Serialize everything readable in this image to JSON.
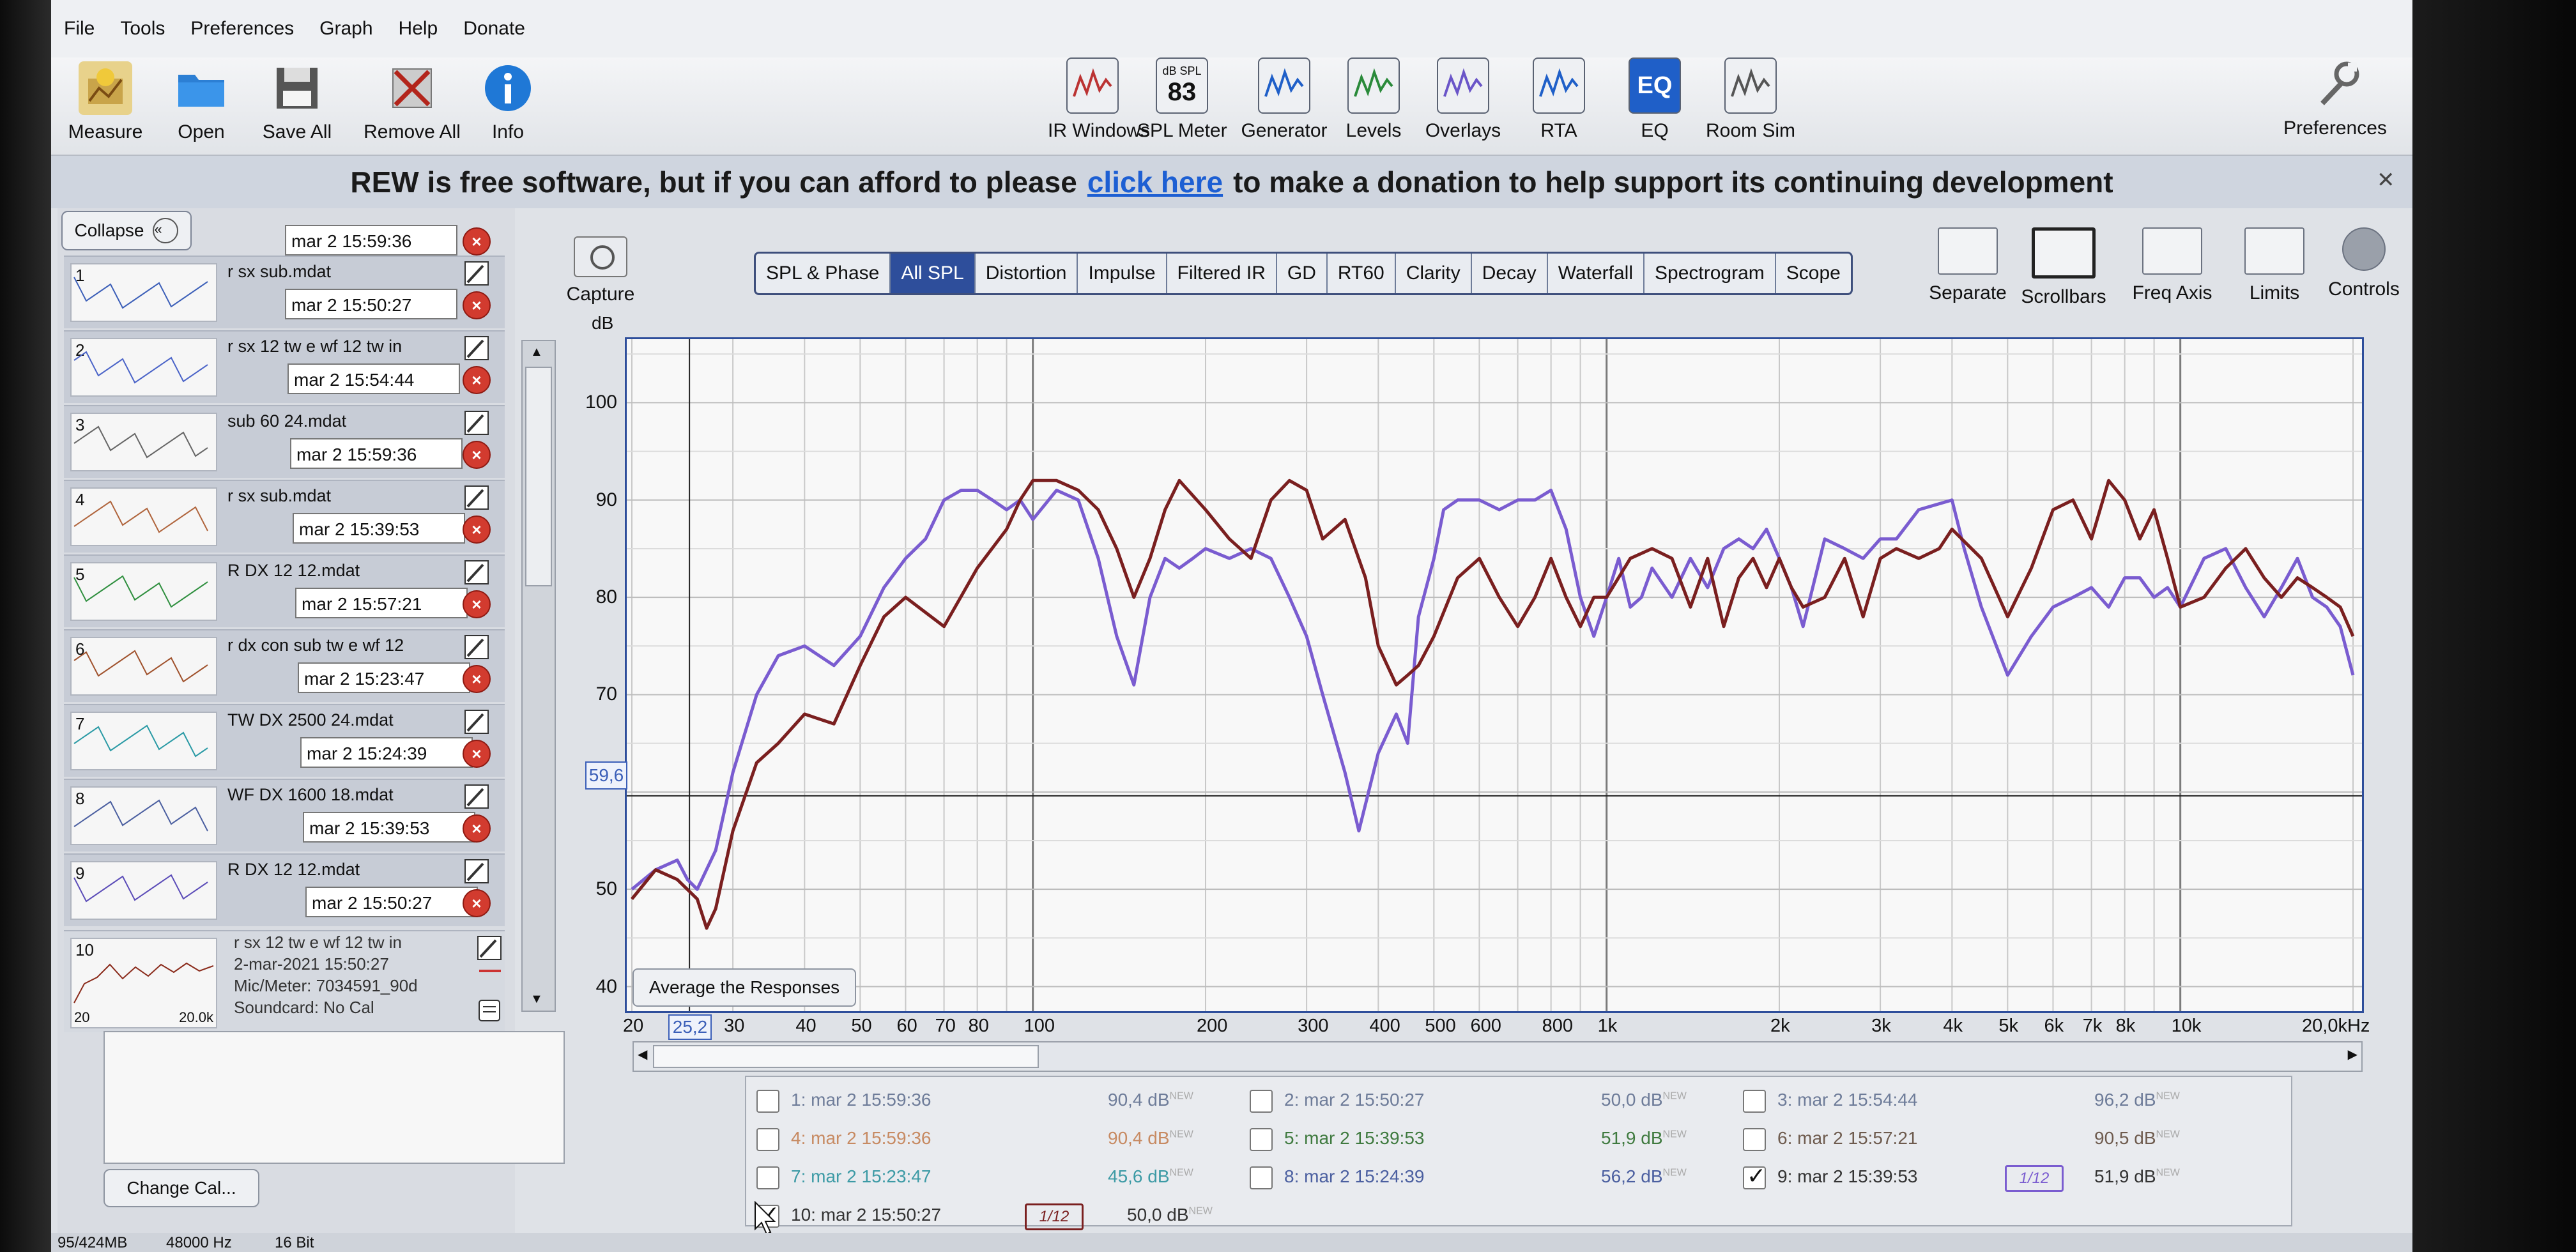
{
  "menu": [
    "File",
    "Tools",
    "Preferences",
    "Graph",
    "Help",
    "Donate"
  ],
  "toolbar_left": [
    "Measure",
    "Open",
    "Save All",
    "Remove All",
    "Info"
  ],
  "toolbar_center": [
    {
      "label": "IR Windows",
      "icon": "ir-windows-icon"
    },
    {
      "label": "SPL Meter",
      "icon": "spl-meter-icon",
      "top": "dB SPL",
      "value": "83"
    },
    {
      "label": "Generator",
      "icon": "generator-icon"
    },
    {
      "label": "Levels",
      "icon": "levels-icon"
    },
    {
      "label": "Overlays",
      "icon": "overlays-icon"
    },
    {
      "label": "RTA",
      "icon": "rta-icon"
    },
    {
      "label": "EQ",
      "icon": "eq-icon"
    },
    {
      "label": "Room Sim",
      "icon": "room-sim-icon"
    }
  ],
  "toolbar_right": "Preferences",
  "banner": {
    "before": "REW is free software, but if you can afford to please",
    "link": "click here",
    "after": "to make a donation to help support its continuing development"
  },
  "left_panel": {
    "collapse_label": "Collapse",
    "top_time": "mar 2 15:59:36",
    "measurements": [
      {
        "num": "1",
        "name": "r sx sub.mdat",
        "time": "mar 2 15:50:27"
      },
      {
        "num": "2",
        "name": "r sx 12 tw e wf 12 tw in",
        "time": "mar 2 15:54:44"
      },
      {
        "num": "3",
        "name": "sub 60 24.mdat",
        "time": "mar 2 15:59:36"
      },
      {
        "num": "4",
        "name": "r sx sub.mdat",
        "time": "mar 2 15:39:53"
      },
      {
        "num": "5",
        "name": "R DX 12 12.mdat",
        "time": "mar 2 15:57:21"
      },
      {
        "num": "6",
        "name": "r dx con sub tw e wf 12",
        "time": "mar 2 15:23:47"
      },
      {
        "num": "7",
        "name": "TW DX 2500 24.mdat",
        "time": "mar 2 15:24:39"
      },
      {
        "num": "8",
        "name": "WF DX 1600 18.mdat",
        "time": "mar 2 15:39:53"
      },
      {
        "num": "9",
        "name": "R DX 12 12.mdat",
        "time": "mar 2 15:50:27"
      }
    ],
    "selected": {
      "num": "10",
      "name": "r sx 12 tw e wf 12 tw in",
      "date": "2-mar-2021 15:50:27",
      "mic": "Mic/Meter: 7034591_90d",
      "soundcard": "Soundcard: No Cal",
      "thumb_min": "20",
      "thumb_max": "20.0k"
    },
    "change_cal": "Change Cal..."
  },
  "capture": {
    "label": "Capture",
    "unit": "dB"
  },
  "tabs": [
    "SPL & Phase",
    "All SPL",
    "Distortion",
    "Impulse",
    "Filtered IR",
    "GD",
    "RT60",
    "Clarity",
    "Decay",
    "Waterfall",
    "Spectrogram",
    "Scope"
  ],
  "active_tab": "All SPL",
  "right_tools": [
    {
      "label": "Separate",
      "icon": "separate-icon"
    },
    {
      "label": "Scrollbars",
      "icon": "scrollbars-icon"
    },
    {
      "label": "Freq Axis",
      "icon": "freq-axis-icon"
    },
    {
      "label": "Limits",
      "icon": "limits-icon"
    },
    {
      "label": "Controls",
      "icon": "controls-icon"
    }
  ],
  "average_button": "Average the Responses",
  "cursor_readout": {
    "y": "59,6",
    "x": "25,2"
  },
  "chart_data": {
    "type": "line",
    "xscale": "log",
    "xlim": [
      20,
      20000
    ],
    "ylim": [
      38,
      106
    ],
    "y_ticks": [
      "100",
      "90",
      "80",
      "70",
      "50",
      "40"
    ],
    "x_ticks": [
      "20",
      "30",
      "40",
      "50",
      "60",
      "70",
      "80",
      "100",
      "200",
      "300",
      "400",
      "500",
      "600",
      "800",
      "1k",
      "2k",
      "3k",
      "4k",
      "5k",
      "6k",
      "7k",
      "8k",
      "10k",
      "20,0kHz"
    ],
    "cursor": {
      "x": 25.2,
      "y": 59.6
    },
    "series": [
      {
        "color": "#7a5cd0",
        "x": [
          20,
          22,
          24,
          25,
          26,
          28,
          30,
          33,
          36,
          40,
          45,
          50,
          55,
          60,
          65,
          70,
          75,
          80,
          85,
          90,
          95,
          100,
          110,
          120,
          130,
          140,
          150,
          160,
          170,
          180,
          190,
          200,
          220,
          240,
          260,
          280,
          300,
          320,
          350,
          370,
          400,
          430,
          450,
          470,
          500,
          520,
          550,
          600,
          650,
          700,
          750,
          800,
          850,
          900,
          950,
          1000,
          1050,
          1100,
          1150,
          1200,
          1300,
          1400,
          1500,
          1600,
          1700,
          1800,
          1900,
          2000,
          2100,
          2200,
          2400,
          2600,
          2800,
          3000,
          3200,
          3500,
          4000,
          4200,
          4500,
          5000,
          5500,
          6000,
          6500,
          7000,
          7500,
          8000,
          8500,
          9000,
          9500,
          10000,
          11000,
          12000,
          13000,
          14000,
          15000,
          16000,
          17000,
          18000,
          19000,
          20000
        ],
        "y": [
          50,
          52,
          53,
          51,
          50,
          54,
          62,
          70,
          74,
          75,
          73,
          76,
          81,
          84,
          86,
          90,
          91,
          91,
          90,
          89,
          90,
          88,
          91,
          90,
          84,
          76,
          71,
          80,
          84,
          83,
          84,
          85,
          84,
          85,
          84,
          80,
          76,
          70,
          62,
          56,
          64,
          68,
          65,
          78,
          84,
          89,
          90,
          90,
          89,
          90,
          90,
          91,
          87,
          80,
          76,
          80,
          84,
          79,
          80,
          83,
          80,
          84,
          81,
          85,
          86,
          85,
          87,
          84,
          81,
          77,
          86,
          85,
          84,
          86,
          86,
          89,
          90,
          85,
          79,
          72,
          76,
          79,
          80,
          81,
          79,
          82,
          82,
          80,
          81,
          79,
          84,
          85,
          81,
          78,
          81,
          84,
          80,
          79,
          77,
          72
        ]
      },
      {
        "color": "#7a1f1f",
        "x": [
          20,
          22,
          24,
          26,
          27,
          28,
          30,
          33,
          36,
          40,
          45,
          50,
          55,
          60,
          70,
          80,
          90,
          95,
          100,
          110,
          120,
          130,
          140,
          150,
          160,
          170,
          180,
          200,
          220,
          240,
          260,
          280,
          300,
          320,
          350,
          380,
          400,
          430,
          450,
          470,
          500,
          550,
          600,
          650,
          700,
          750,
          800,
          850,
          900,
          950,
          1000,
          1100,
          1200,
          1300,
          1400,
          1500,
          1600,
          1700,
          1800,
          1900,
          2000,
          2100,
          2200,
          2400,
          2600,
          2800,
          3000,
          3200,
          3500,
          3800,
          4000,
          4500,
          5000,
          5500,
          6000,
          6500,
          7000,
          7500,
          8000,
          8500,
          9000,
          9500,
          10000,
          11000,
          12000,
          13000,
          14000,
          15000,
          16000,
          17000,
          18000,
          19000,
          20000
        ],
        "y": [
          49,
          52,
          51,
          49,
          46,
          48,
          56,
          63,
          65,
          68,
          67,
          73,
          78,
          80,
          77,
          83,
          87,
          90,
          92,
          92,
          91,
          89,
          85,
          80,
          84,
          89,
          92,
          89,
          86,
          84,
          90,
          92,
          91,
          86,
          88,
          82,
          75,
          71,
          72,
          73,
          76,
          82,
          84,
          80,
          77,
          80,
          84,
          80,
          77,
          80,
          80,
          84,
          85,
          84,
          79,
          84,
          77,
          82,
          84,
          81,
          84,
          81,
          79,
          80,
          84,
          78,
          84,
          85,
          84,
          85,
          87,
          84,
          78,
          83,
          89,
          90,
          86,
          92,
          90,
          86,
          89,
          84,
          79,
          80,
          83,
          85,
          82,
          80,
          82,
          81,
          80,
          79,
          76
        ]
      }
    ]
  },
  "legend": [
    {
      "n": "1",
      "time": "mar 2 15:59:36",
      "val": "90,4 dB",
      "checked": false,
      "color": "#6e7c99"
    },
    {
      "n": "2",
      "time": "mar 2 15:50:27",
      "val": "50,0 dB",
      "checked": false,
      "color": "#6e7c99"
    },
    {
      "n": "3",
      "time": "mar 2 15:54:44",
      "val": "96,2 dB",
      "checked": false,
      "color": "#6e7c99"
    },
    {
      "n": "4",
      "time": "mar 2 15:59:36",
      "val": "90,4 dB",
      "checked": false,
      "color": "#c78a62"
    },
    {
      "n": "5",
      "time": "mar 2 15:39:53",
      "val": "51,9 dB",
      "checked": false,
      "color": "#3f7a3f"
    },
    {
      "n": "6",
      "time": "mar 2 15:57:21",
      "val": "90,5 dB",
      "checked": false,
      "color": "#6e5b4e"
    },
    {
      "n": "7",
      "time": "mar 2 15:23:47",
      "val": "45,6 dB",
      "checked": false,
      "color": "#3c9aa5"
    },
    {
      "n": "8",
      "time": "mar 2 15:24:39",
      "val": "56,2 dB",
      "checked": false,
      "color": "#4b5fa0"
    },
    {
      "n": "9",
      "time": "mar 2 15:39:53",
      "val": "51,9 dB",
      "checked": true,
      "color": "#7a5cd0",
      "smoothing": "1/12"
    },
    {
      "n": "10",
      "time": "mar 2 15:50:27",
      "val": "50,0 dB",
      "checked": true,
      "color": "#7a1f1f",
      "smoothing": "1/12"
    }
  ],
  "legend_new_tag": "NEW",
  "status": [
    "95/424MB",
    "48000 Hz",
    "16 Bit"
  ]
}
